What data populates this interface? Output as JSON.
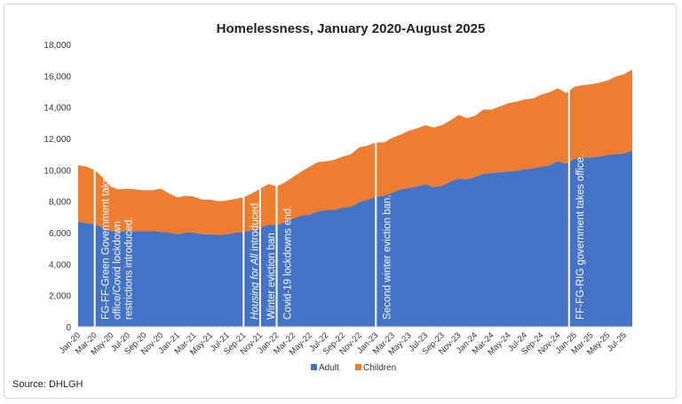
{
  "chart_data": {
    "type": "area",
    "stacked": true,
    "title": "Homelessness, January 2020-August 2025",
    "xlabel": "",
    "ylabel": "",
    "ylim": [
      0,
      18000
    ],
    "yticks": [
      0,
      2000,
      4000,
      6000,
      8000,
      10000,
      12000,
      14000,
      16000,
      18000
    ],
    "grid": false,
    "legend": "bottom",
    "x": [
      "Jan-20",
      "Feb-20",
      "Mar-20",
      "Apr-20",
      "May-20",
      "Jun-20",
      "Jul-20",
      "Aug-20",
      "Sep-20",
      "Oct-20",
      "Nov-20",
      "Dec-20",
      "Jan-21",
      "Feb-21",
      "Mar-21",
      "Apr-21",
      "May-21",
      "Jun-21",
      "Jul-21",
      "Aug-21",
      "Sep-21",
      "Oct-21",
      "Nov-21",
      "Dec-21",
      "Jan-22",
      "Feb-22",
      "Mar-22",
      "Apr-22",
      "May-22",
      "Jun-22",
      "Jul-22",
      "Aug-22",
      "Sep-22",
      "Oct-22",
      "Nov-22",
      "Dec-22",
      "Jan-23",
      "Feb-23",
      "Mar-23",
      "Apr-23",
      "May-23",
      "Jun-23",
      "Jul-23",
      "Aug-23",
      "Sep-23",
      "Oct-23",
      "Nov-23",
      "Dec-23",
      "Jan-24",
      "Feb-24",
      "Mar-24",
      "Apr-24",
      "May-24",
      "Jun-24",
      "Jul-24",
      "Aug-24",
      "Sep-24",
      "Oct-24",
      "Nov-24",
      "Dec-24",
      "Jan-25",
      "Feb-25",
      "Mar-25",
      "Apr-25",
      "May-25",
      "Jun-25",
      "Jul-25",
      "Aug-25"
    ],
    "tick_labels": [
      "Jan-20",
      "Mar-20",
      "May-20",
      "Jul-20",
      "Sep-20",
      "Nov-20",
      "Jan-21",
      "Mar-21",
      "May-21",
      "Jul-21",
      "Sep-21",
      "Nov-21",
      "Jan-22",
      "Mar-22",
      "May-22",
      "Jul-22",
      "Sep-22",
      "Nov-22",
      "Jan-23",
      "Mar-23",
      "May-23",
      "Jul-23",
      "Sep-23",
      "Nov-23",
      "Jan-24",
      "Mar-24",
      "May-24",
      "Jul-24",
      "Sep-24",
      "Nov-24",
      "Jan-25",
      "Mar-25",
      "May-25",
      "Jul-25"
    ],
    "series": [
      {
        "name": "Adult",
        "color": "#4472c4",
        "values": [
          6700,
          6600,
          6550,
          6300,
          6100,
          6050,
          6100,
          6100,
          6100,
          6100,
          6050,
          6000,
          5900,
          6000,
          6000,
          5900,
          5900,
          5850,
          5900,
          6000,
          6050,
          6150,
          6300,
          6500,
          6500,
          6650,
          6900,
          7100,
          7150,
          7350,
          7450,
          7450,
          7600,
          7650,
          7950,
          8100,
          8300,
          8350,
          8550,
          8750,
          8850,
          8950,
          9100,
          8900,
          9000,
          9250,
          9450,
          9400,
          9550,
          9750,
          9800,
          9850,
          9900,
          9950,
          10050,
          10100,
          10200,
          10300,
          10550,
          10400,
          10700,
          10800,
          10800,
          10850,
          10950,
          11000,
          11050,
          11250
        ]
      },
      {
        "name": "Children",
        "color": "#ed7d31",
        "values": [
          3600,
          3600,
          3450,
          3200,
          2800,
          2700,
          2700,
          2650,
          2600,
          2600,
          2750,
          2500,
          2350,
          2350,
          2300,
          2200,
          2200,
          2150,
          2150,
          2150,
          2200,
          2350,
          2500,
          2600,
          2450,
          2550,
          2650,
          2800,
          3050,
          3150,
          3100,
          3200,
          3250,
          3350,
          3500,
          3450,
          3450,
          3400,
          3500,
          3500,
          3650,
          3700,
          3750,
          3800,
          3850,
          3900,
          4050,
          3900,
          3900,
          4100,
          4050,
          4200,
          4350,
          4400,
          4450,
          4450,
          4600,
          4650,
          4650,
          4500,
          4600,
          4600,
          4650,
          4700,
          4750,
          4950,
          5050,
          5150
        ]
      }
    ],
    "annotations": [
      {
        "x": "Mar-20",
        "lines": [
          "FG-FF-Green Government takes",
          "office/Covid lockdown",
          "restrictions introduced."
        ]
      },
      {
        "x": "Sep-21",
        "italic": "Housing for All",
        "rest": " introduced"
      },
      {
        "x": "Nov-21",
        "lines": [
          "Winter eviction ban"
        ]
      },
      {
        "x": "Jan-22",
        "lines": [
          "Covid-19 lockdowns end."
        ]
      },
      {
        "x": "Jan-23",
        "lines": [
          "Second winter eviction ban."
        ]
      },
      {
        "x": "Jan-25",
        "lines": [
          "FF-FG-RIG government takes office."
        ]
      }
    ]
  },
  "source": "Source: DHLGH"
}
